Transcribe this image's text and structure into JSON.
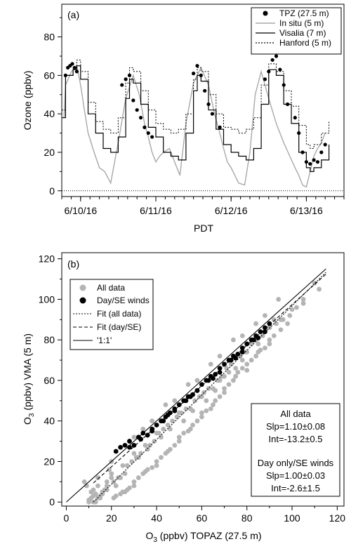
{
  "chart_data": [
    {
      "type": "line",
      "panel_label": "(a)",
      "xlabel": "PDT",
      "ylabel": "Ozone (ppbv)",
      "ylim": [
        -3,
        97
      ],
      "yticks": [
        0,
        20,
        40,
        60,
        80
      ],
      "xlim": [
        -0.25,
        3.5
      ],
      "xtick_labels": [
        "6/10/16",
        "6/11/16",
        "6/12/16",
        "6/13/16"
      ],
      "x_unit": "days since 6/10/16 00:00 PDT",
      "legend": [
        {
          "label": "TPZ  (27.5 m)",
          "style": "filled-circle"
        },
        {
          "label": "In situ    (5 m)",
          "style": "gray-line"
        },
        {
          "label": "Visalia    (7 m)",
          "style": "black-line"
        },
        {
          "label": "Hanford   (5 m)",
          "style": "dotted-line"
        }
      ],
      "legend_position": "top-right",
      "series": [
        {
          "name": "TPZ  (27.5 m)",
          "type": "scatter",
          "x": [
            -0.2,
            -0.17,
            -0.14,
            -0.11,
            -0.08,
            -0.05,
            0.55,
            0.6,
            0.65,
            0.7,
            0.75,
            0.8,
            0.85,
            0.9,
            0.95,
            1.5,
            1.55,
            1.6,
            1.65,
            1.7,
            1.75,
            1.85,
            2.45,
            2.5,
            2.55,
            2.6,
            2.65,
            2.7,
            2.75,
            2.85,
            2.9,
            2.95,
            3.0,
            3.05,
            3.1,
            3.15,
            3.2,
            3.25
          ],
          "y": [
            60,
            64,
            65,
            66,
            64,
            62,
            55,
            58,
            60,
            47,
            42,
            38,
            33,
            30,
            28,
            61,
            65,
            60,
            52,
            45,
            40,
            33,
            58,
            62,
            68,
            70,
            63,
            55,
            45,
            38,
            30,
            20,
            15,
            14,
            16,
            15,
            20,
            24
          ]
        },
        {
          "name": "In situ    (5 m)",
          "type": "line",
          "x": [
            -0.22,
            -0.2,
            -0.12,
            -0.05,
            0.0,
            0.05,
            0.1,
            0.18,
            0.25,
            0.32,
            0.4,
            0.5,
            0.6,
            0.7,
            0.78,
            0.85,
            0.9,
            0.95,
            1.0,
            1.05,
            1.1,
            1.18,
            1.25,
            1.32,
            1.4,
            1.5,
            1.6,
            1.7,
            1.78,
            1.85,
            1.9,
            1.95,
            2.0,
            2.05,
            2.1,
            2.18,
            2.25,
            2.32,
            2.4,
            2.5,
            2.6,
            2.7,
            2.78,
            2.85,
            2.9,
            2.95,
            3.0,
            3.05,
            3.1,
            3.15,
            3.2,
            3.25
          ],
          "y": [
            38,
            55,
            62,
            65,
            55,
            42,
            30,
            20,
            12,
            10,
            4,
            25,
            48,
            60,
            50,
            35,
            28,
            20,
            15,
            18,
            20,
            22,
            15,
            8,
            35,
            56,
            64,
            55,
            40,
            30,
            22,
            15,
            12,
            8,
            4,
            3,
            20,
            50,
            62,
            48,
            35,
            25,
            18,
            12,
            8,
            3,
            2,
            10,
            18,
            22,
            25,
            30
          ]
        },
        {
          "name": "Visalia    (7 m)",
          "type": "line",
          "x": [
            -0.25,
            -0.2,
            -0.1,
            -0.05,
            0.0,
            0.1,
            0.2,
            0.3,
            0.4,
            0.5,
            0.6,
            0.65,
            0.7,
            0.8,
            0.9,
            1.0,
            1.1,
            1.2,
            1.3,
            1.4,
            1.5,
            1.55,
            1.6,
            1.7,
            1.8,
            1.9,
            2.0,
            2.1,
            2.2,
            2.3,
            2.4,
            2.5,
            2.6,
            2.7,
            2.8,
            2.9,
            3.0,
            3.05,
            3.1,
            3.2,
            3.3
          ],
          "y": [
            38,
            60,
            63,
            65,
            58,
            40,
            30,
            22,
            20,
            28,
            48,
            58,
            56,
            45,
            33,
            28,
            20,
            18,
            16,
            30,
            52,
            60,
            57,
            42,
            32,
            24,
            20,
            18,
            16,
            22,
            45,
            63,
            60,
            45,
            35,
            20,
            12,
            10,
            12,
            16,
            24
          ]
        },
        {
          "name": "Hanford   (5 m)",
          "type": "line",
          "x": [
            -0.25,
            -0.2,
            -0.1,
            -0.05,
            0.0,
            0.1,
            0.2,
            0.3,
            0.4,
            0.5,
            0.6,
            0.65,
            0.7,
            0.8,
            0.9,
            1.0,
            1.1,
            1.2,
            1.3,
            1.4,
            1.5,
            1.55,
            1.6,
            1.7,
            1.8,
            1.9,
            2.0,
            2.1,
            2.2,
            2.3,
            2.4,
            2.5,
            2.6,
            2.7,
            2.8,
            2.9,
            3.0,
            3.05,
            3.1,
            3.2,
            3.3
          ],
          "y": [
            42,
            60,
            64,
            68,
            62,
            46,
            36,
            32,
            30,
            38,
            56,
            64,
            62,
            52,
            42,
            35,
            32,
            30,
            32,
            40,
            58,
            64,
            62,
            50,
            40,
            33,
            32,
            30,
            32,
            38,
            55,
            66,
            62,
            52,
            44,
            34,
            24,
            22,
            24,
            30,
            36
          ]
        },
        {
          "name": "zero line",
          "type": "line",
          "x": [
            -0.25,
            3.5
          ],
          "y": [
            0,
            0
          ]
        }
      ]
    },
    {
      "type": "scatter",
      "panel_label": "(b)",
      "xlabel_parts": {
        "main": "O",
        "sub": "3",
        "rest": " (ppbv) TOPAZ (27.5 m)"
      },
      "ylabel_parts": {
        "main": "O",
        "sub": "3",
        "rest": " (ppbv) VMA (5 m)"
      },
      "xlim": [
        -2,
        123
      ],
      "ylim": [
        -2,
        123
      ],
      "xticks": [
        0,
        20,
        40,
        60,
        80,
        100,
        120
      ],
      "yticks": [
        0,
        20,
        40,
        60,
        80,
        100,
        120
      ],
      "legend": [
        {
          "label": "All data",
          "style": "gray-circle"
        },
        {
          "label": "Day/SE winds",
          "style": "black-circle"
        },
        {
          "label": "Fit (all data)",
          "style": "dotted-line"
        },
        {
          "label": "Fit (day/SE)",
          "style": "dashed-line"
        },
        {
          "label": "'1:1'",
          "style": "solid-line"
        }
      ],
      "legend_position": "top-left",
      "stats_box": {
        "all_title": "All data",
        "all_slope": "Slp=1.10±0.08",
        "all_int": "Int=-13.2±0.5",
        "day_title": "Day only/SE winds",
        "day_slope": "Slp=1.00±0.03",
        "day_int": "Int=-2.6±1.5"
      },
      "stats_position": "bottom-right",
      "lines": [
        {
          "name": "Fit (all data)",
          "slope": 1.1,
          "intercept": -13.2,
          "x_range": [
            12,
            115
          ]
        },
        {
          "name": "Fit (day/SE)",
          "slope": 1.0,
          "intercept": -2.6,
          "x_range": [
            12,
            115
          ]
        },
        {
          "name": "'1:1'",
          "slope": 1.0,
          "intercept": 0.0,
          "x_range": [
            0,
            115
          ]
        }
      ],
      "series": [
        {
          "name": "All data",
          "x": [
            110,
            112,
            105,
            100,
            98,
            95,
            92,
            90,
            90,
            88,
            86,
            85,
            84,
            82,
            80,
            80,
            78,
            76,
            75,
            74,
            72,
            70,
            70,
            68,
            66,
            65,
            64,
            62,
            60,
            60,
            58,
            56,
            55,
            54,
            52,
            50,
            50,
            48,
            46,
            45,
            44,
            42,
            40,
            40,
            38,
            36,
            35,
            34,
            32,
            30,
            30,
            28,
            27,
            26,
            25,
            24,
            22,
            21,
            20,
            20,
            19,
            18,
            18,
            17,
            16,
            16,
            15,
            15,
            14,
            14,
            14,
            13,
            13,
            12,
            12,
            12,
            11,
            11,
            10,
            10,
            9,
            8,
            95,
            93,
            88,
            87,
            84,
            82,
            79,
            77,
            73,
            71,
            69,
            67,
            63,
            61,
            59,
            57,
            53,
            51,
            49,
            47,
            43,
            41,
            39,
            37,
            33,
            31,
            29,
            27,
            23,
            21,
            78,
            85,
            90,
            92,
            75,
            80,
            65,
            70,
            55,
            60,
            45,
            50,
            35,
            40,
            25,
            30,
            105,
            102,
            99,
            96,
            68,
            72,
            62,
            66,
            52,
            56,
            42,
            46,
            32,
            36,
            24,
            26,
            18,
            22,
            20,
            28,
            30,
            34,
            38,
            44,
            48,
            54,
            58,
            64,
            68,
            74,
            78,
            84,
            88,
            94
          ],
          "y": [
            108,
            105,
            98,
            95,
            88,
            85,
            82,
            80,
            78,
            76,
            75,
            74,
            72,
            70,
            68,
            65,
            66,
            64,
            62,
            60,
            58,
            56,
            54,
            52,
            50,
            48,
            46,
            45,
            44,
            42,
            40,
            38,
            36,
            35,
            34,
            32,
            30,
            28,
            26,
            25,
            24,
            22,
            20,
            18,
            17,
            16,
            15,
            14,
            12,
            10,
            8,
            7,
            6,
            5,
            5,
            4,
            3,
            2,
            12,
            14,
            16,
            10,
            8,
            6,
            5,
            4,
            3,
            2,
            12,
            8,
            2,
            4,
            0,
            3,
            6,
            0,
            2,
            5,
            1,
            0,
            8,
            10,
            90,
            88,
            84,
            82,
            80,
            78,
            74,
            72,
            68,
            66,
            62,
            60,
            56,
            54,
            52,
            50,
            46,
            44,
            42,
            40,
            36,
            34,
            30,
            28,
            24,
            22,
            20,
            18,
            12,
            10,
            70,
            78,
            86,
            90,
            66,
            74,
            56,
            62,
            46,
            52,
            38,
            44,
            28,
            34,
            18,
            24,
            100,
            96,
            92,
            90,
            60,
            64,
            50,
            55,
            40,
            45,
            32,
            36,
            22,
            26,
            12,
            14,
            6,
            8,
            20,
            30,
            32,
            36,
            40,
            48,
            50,
            58,
            60,
            68,
            72,
            80,
            82,
            88,
            92,
            100
          ]
        },
        {
          "name": "Day/SE winds",
          "x": [
            22,
            24,
            26,
            28,
            30,
            32,
            34,
            36,
            38,
            40,
            42,
            44,
            46,
            48,
            50,
            52,
            54,
            56,
            58,
            60,
            62,
            64,
            66,
            68,
            70,
            72,
            74,
            76,
            78,
            80,
            82,
            84,
            86,
            88,
            90,
            28,
            33,
            38,
            43,
            48,
            53,
            58,
            63,
            68,
            73,
            78,
            83,
            88,
            45,
            55,
            65,
            75,
            85
          ],
          "y": [
            25,
            27,
            28,
            30,
            28,
            32,
            34,
            33,
            36,
            38,
            40,
            42,
            44,
            46,
            48,
            50,
            52,
            53,
            55,
            58,
            60,
            62,
            63,
            66,
            68,
            70,
            72,
            73,
            76,
            78,
            80,
            82,
            84,
            86,
            88,
            27,
            31,
            35,
            40,
            45,
            50,
            55,
            60,
            64,
            70,
            74,
            80,
            84,
            43,
            52,
            61,
            71,
            81
          ]
        }
      ]
    }
  ]
}
